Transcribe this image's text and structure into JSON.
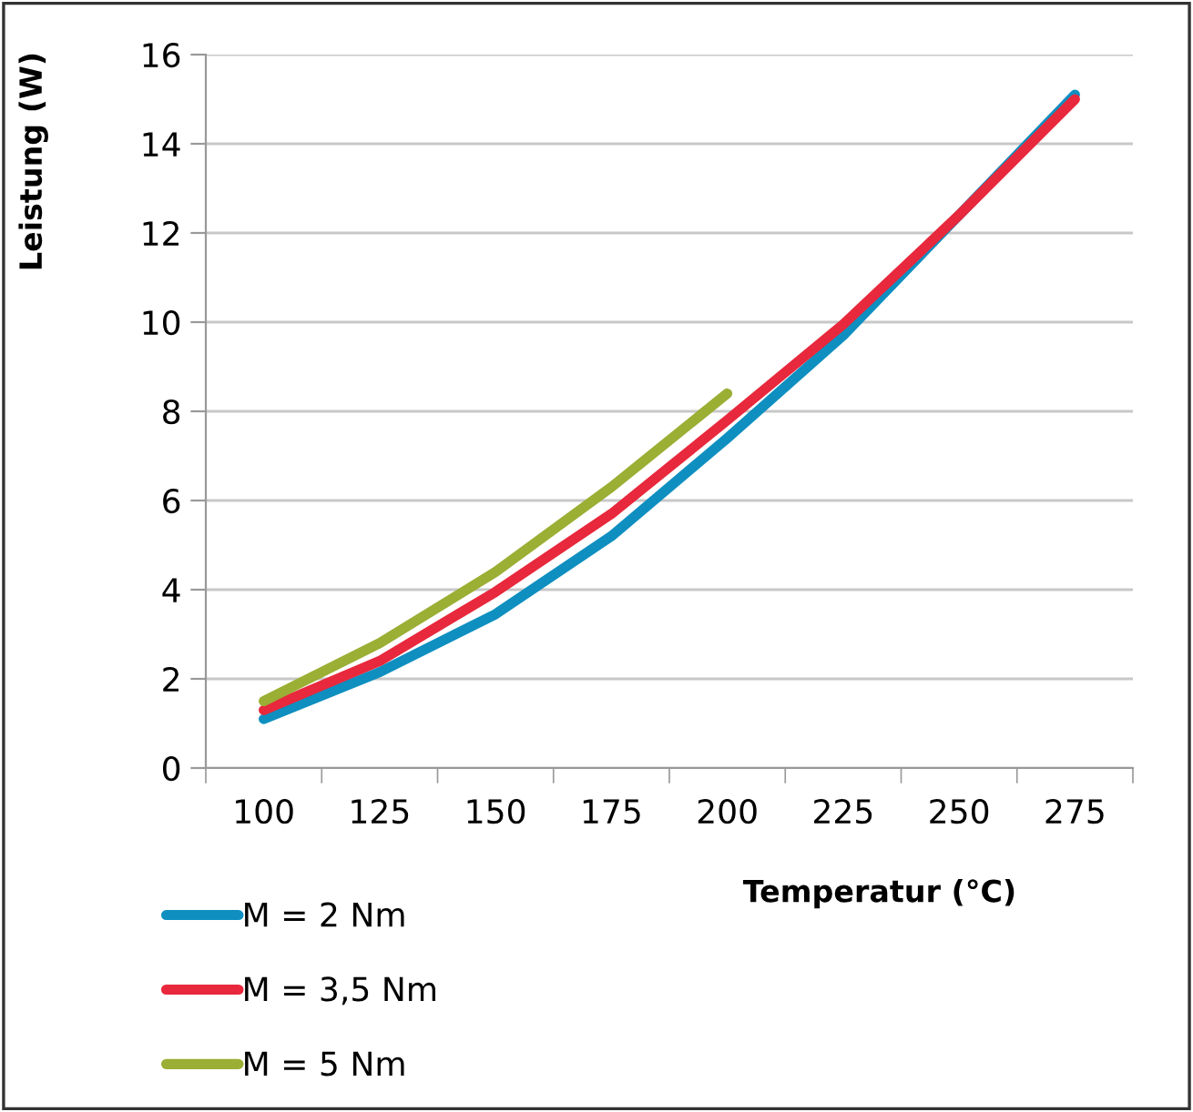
{
  "chart_data": {
    "type": "line",
    "xlabel": "Temperatur (°C)",
    "ylabel": "Leistung (W)",
    "categories": [
      "100",
      "125",
      "150",
      "175",
      "200",
      "225",
      "250",
      "275"
    ],
    "ylim": [
      0,
      16
    ],
    "yticks": [
      0,
      2,
      4,
      6,
      8,
      10,
      12,
      14,
      16
    ],
    "grid": "y",
    "legend": "bottom left",
    "marker": "none",
    "line_style": "solid",
    "series": [
      {
        "name": "M = 2 Nm",
        "color": "#0e8fc0",
        "values": [
          1.1,
          2.15,
          3.45,
          5.2,
          7.4,
          9.7,
          12.4,
          15.1
        ]
      },
      {
        "name": "M = 3,5 Nm",
        "color": "#e8283c",
        "values": [
          1.3,
          2.4,
          3.95,
          5.7,
          7.8,
          9.95,
          12.4,
          15.0
        ]
      },
      {
        "name": "M = 5 Nm",
        "color": "#9aaf34",
        "values": [
          1.5,
          2.8,
          4.4,
          6.3,
          8.4,
          null,
          null,
          null
        ]
      }
    ]
  }
}
